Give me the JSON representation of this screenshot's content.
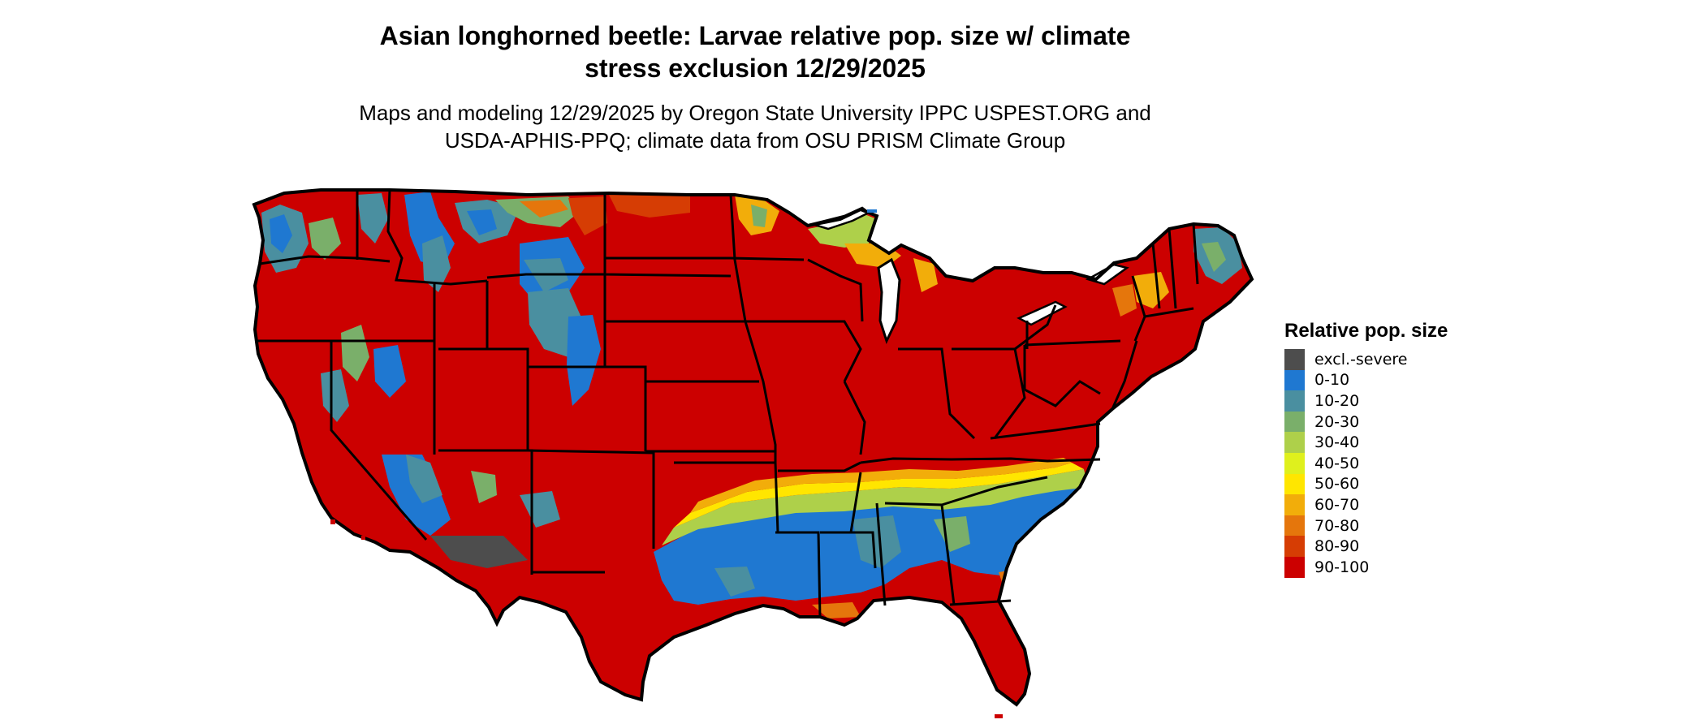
{
  "title_lines": [
    "Asian longhorned beetle: Larvae relative pop. size w/ climate",
    "stress exclusion 12/29/2025"
  ],
  "subtitle_lines": [
    "Maps and modeling 12/29/2025 by Oregon State University IPPC USPEST.ORG and",
    "USDA-APHIS-PPQ; climate data from OSU PRISM Climate Group"
  ],
  "legend": {
    "title": "Relative pop. size",
    "items": [
      {
        "label": "excl.-severe",
        "color": "#4d4d4d"
      },
      {
        "label": "0-10",
        "color": "#1f78d1"
      },
      {
        "label": "10-20",
        "color": "#4a8fa0"
      },
      {
        "label": "20-30",
        "color": "#7aaf6a"
      },
      {
        "label": "30-40",
        "color": "#aed04a"
      },
      {
        "label": "40-50",
        "color": "#dff01d"
      },
      {
        "label": "50-60",
        "color": "#ffe600"
      },
      {
        "label": "60-70",
        "color": "#f2ad0a"
      },
      {
        "label": "70-80",
        "color": "#e5760c"
      },
      {
        "label": "80-90",
        "color": "#d63d04"
      },
      {
        "label": "90-100",
        "color": "#cc0000"
      }
    ]
  }
}
